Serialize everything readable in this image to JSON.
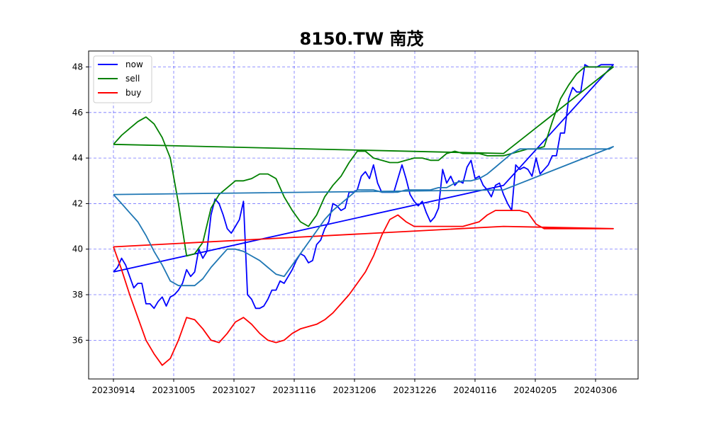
{
  "chart_data": {
    "type": "line",
    "title": "8150.TW 南茂",
    "xlabel": "",
    "ylabel": "",
    "x_tick_labels": [
      "20230914",
      "20231005",
      "20231027",
      "20231116",
      "20231206",
      "20231226",
      "20240116",
      "20240205",
      "20240306"
    ],
    "y_ticks": [
      36,
      38,
      40,
      42,
      44,
      46,
      48
    ],
    "xlim": [
      0,
      123
    ],
    "ylim": [
      34.3,
      48.7
    ],
    "grid": true,
    "legend_placement": "top-left",
    "colors": {
      "now": "#0000ff",
      "sell": "#008000",
      "buy": "#ff0000",
      "fourth": "#1f77b4",
      "grid": "#0000ff"
    },
    "series": [
      {
        "name": "now",
        "color": "#0000ff",
        "x": [
          0,
          1,
          2,
          3,
          4,
          5,
          6,
          7,
          8,
          9,
          10,
          11,
          12,
          13,
          14,
          15,
          16,
          17,
          18,
          19,
          20,
          21,
          22,
          23,
          24,
          25,
          26,
          27,
          28,
          29,
          30,
          31,
          32,
          33,
          34,
          35,
          36,
          37,
          38,
          39,
          40,
          41,
          42,
          43,
          44,
          45,
          46,
          47,
          48,
          49,
          50,
          51,
          52,
          53,
          54,
          55,
          56,
          57,
          58,
          59,
          60,
          61,
          62,
          63,
          64,
          65,
          66,
          67,
          68,
          69,
          70,
          71,
          72,
          73,
          74,
          75,
          76,
          77,
          78,
          79,
          80,
          81,
          82,
          83,
          84,
          85,
          86,
          87,
          88,
          89,
          90,
          91,
          92,
          93,
          94,
          95,
          96,
          97,
          98,
          99,
          100,
          101,
          102,
          103,
          104,
          105,
          106,
          107,
          108,
          109,
          110,
          111,
          112,
          113,
          114,
          115,
          116,
          117,
          118,
          119,
          120,
          121,
          122,
          123,
          96,
          0
        ],
        "y": [
          39.0,
          39.2,
          39.6,
          39.3,
          38.8,
          38.3,
          38.5,
          38.5,
          37.6,
          37.6,
          37.4,
          37.7,
          37.9,
          37.5,
          37.9,
          38.0,
          38.2,
          38.5,
          39.1,
          38.8,
          39.0,
          40.0,
          39.6,
          39.9,
          41.5,
          42.2,
          42.0,
          41.5,
          40.9,
          40.7,
          41.0,
          41.3,
          42.1,
          38.0,
          37.8,
          37.4,
          37.4,
          37.5,
          37.8,
          38.2,
          38.2,
          38.6,
          38.5,
          38.8,
          39.1,
          39.5,
          39.8,
          39.7,
          39.4,
          39.5,
          40.2,
          40.4,
          40.9,
          41.2,
          42.0,
          41.9,
          41.7,
          41.8,
          42.5,
          42.5,
          42.6,
          43.2,
          43.4,
          43.1,
          43.7,
          42.9,
          42.5,
          42.5,
          42.5,
          42.5,
          43.1,
          43.7,
          43.1,
          42.4,
          42.1,
          41.9,
          42.1,
          41.6,
          41.2,
          41.4,
          41.8,
          43.5,
          42.9,
          43.2,
          42.8,
          43.0,
          42.9,
          43.6,
          43.9,
          43.1,
          43.2,
          42.8,
          42.6,
          42.3,
          42.8,
          42.9,
          42.4,
          42.0,
          41.7,
          43.7,
          43.5,
          43.6,
          43.5,
          43.2,
          44.0,
          43.3,
          43.5,
          43.7,
          44.1,
          44.1,
          45.1,
          45.1,
          46.6,
          47.1,
          46.9,
          46.9,
          48.1,
          48.0,
          48.0,
          48.0,
          48.1,
          48.1,
          48.1,
          48.1,
          42.8,
          39.0
        ]
      },
      {
        "name": "sell",
        "color": "#008000",
        "x": [
          0,
          2,
          4,
          6,
          8,
          10,
          12,
          14,
          16,
          18,
          20,
          22,
          24,
          26,
          28,
          30,
          32,
          34,
          36,
          38,
          40,
          42,
          44,
          46,
          48,
          50,
          52,
          54,
          56,
          58,
          60,
          62,
          64,
          66,
          68,
          70,
          72,
          74,
          76,
          78,
          80,
          82,
          84,
          86,
          88,
          90,
          92,
          94,
          96,
          98,
          100,
          102,
          104,
          106,
          108,
          110,
          112,
          114,
          116,
          118,
          120,
          122,
          123,
          96,
          0
        ],
        "y": [
          44.6,
          45.0,
          45.3,
          45.6,
          45.8,
          45.5,
          44.9,
          44.0,
          42.0,
          39.7,
          39.8,
          40.3,
          41.8,
          42.4,
          42.7,
          43.0,
          43.0,
          43.1,
          43.3,
          43.3,
          43.1,
          42.3,
          41.7,
          41.2,
          41.0,
          41.5,
          42.3,
          42.8,
          43.2,
          43.8,
          44.3,
          44.3,
          44.0,
          43.9,
          43.8,
          43.8,
          43.9,
          44.0,
          44.0,
          43.9,
          43.9,
          44.2,
          44.3,
          44.2,
          44.2,
          44.2,
          44.1,
          44.1,
          44.1,
          44.2,
          44.3,
          44.4,
          44.4,
          44.5,
          45.6,
          46.6,
          47.2,
          47.7,
          48.0,
          48.0,
          48.0,
          48.0,
          48.0,
          44.2,
          44.6
        ]
      },
      {
        "name": "buy",
        "color": "#ff0000",
        "x": [
          0,
          2,
          4,
          6,
          8,
          10,
          12,
          14,
          16,
          18,
          20,
          22,
          24,
          26,
          28,
          30,
          32,
          34,
          36,
          38,
          40,
          42,
          44,
          46,
          48,
          50,
          52,
          54,
          56,
          58,
          60,
          62,
          64,
          66,
          68,
          70,
          72,
          74,
          76,
          78,
          80,
          82,
          84,
          86,
          88,
          90,
          92,
          94,
          96,
          98,
          100,
          102,
          104,
          106,
          108,
          110,
          112,
          114,
          116,
          118,
          120,
          122,
          123,
          96,
          0
        ],
        "y": [
          40.1,
          39.1,
          38.0,
          37.0,
          36.0,
          35.4,
          34.9,
          35.2,
          36.0,
          37.0,
          36.9,
          36.5,
          36.0,
          35.9,
          36.3,
          36.8,
          37.0,
          36.7,
          36.3,
          36.0,
          35.9,
          36.0,
          36.3,
          36.5,
          36.6,
          36.7,
          36.9,
          37.2,
          37.6,
          38.0,
          38.5,
          39.0,
          39.7,
          40.6,
          41.3,
          41.5,
          41.2,
          41.0,
          41.0,
          41.0,
          41.0,
          41.0,
          41.0,
          41.0,
          41.1,
          41.2,
          41.5,
          41.7,
          41.7,
          41.7,
          41.7,
          41.6,
          41.1,
          40.9,
          40.9,
          40.9,
          40.9,
          40.9,
          40.9,
          40.9,
          40.9,
          40.9,
          40.9,
          41.0,
          40.1
        ]
      },
      {
        "name": "",
        "color": "#1f77b4",
        "x": [
          0,
          2,
          4,
          6,
          8,
          10,
          12,
          14,
          16,
          18,
          20,
          22,
          24,
          26,
          28,
          30,
          32,
          34,
          36,
          38,
          40,
          42,
          44,
          46,
          48,
          50,
          52,
          54,
          56,
          58,
          60,
          62,
          64,
          66,
          68,
          70,
          72,
          74,
          76,
          78,
          80,
          82,
          84,
          86,
          88,
          90,
          92,
          94,
          96,
          98,
          100,
          102,
          104,
          106,
          108,
          110,
          112,
          114,
          116,
          118,
          120,
          122,
          123,
          96,
          0
        ],
        "y": [
          42.4,
          42.0,
          41.6,
          41.2,
          40.6,
          39.9,
          39.3,
          38.6,
          38.4,
          38.4,
          38.4,
          38.7,
          39.2,
          39.6,
          40.0,
          40.0,
          39.9,
          39.7,
          39.5,
          39.2,
          38.9,
          38.8,
          39.3,
          39.8,
          40.3,
          40.8,
          41.3,
          41.7,
          42.0,
          42.3,
          42.6,
          42.6,
          42.6,
          42.5,
          42.5,
          42.5,
          42.6,
          42.6,
          42.6,
          42.6,
          42.7,
          42.7,
          42.9,
          43.0,
          43.0,
          43.1,
          43.3,
          43.6,
          43.9,
          44.2,
          44.4,
          44.4,
          44.4,
          44.4,
          44.4,
          44.4,
          44.4,
          44.4,
          44.4,
          44.4,
          44.4,
          44.4,
          44.5,
          42.6,
          42.4
        ]
      }
    ]
  }
}
